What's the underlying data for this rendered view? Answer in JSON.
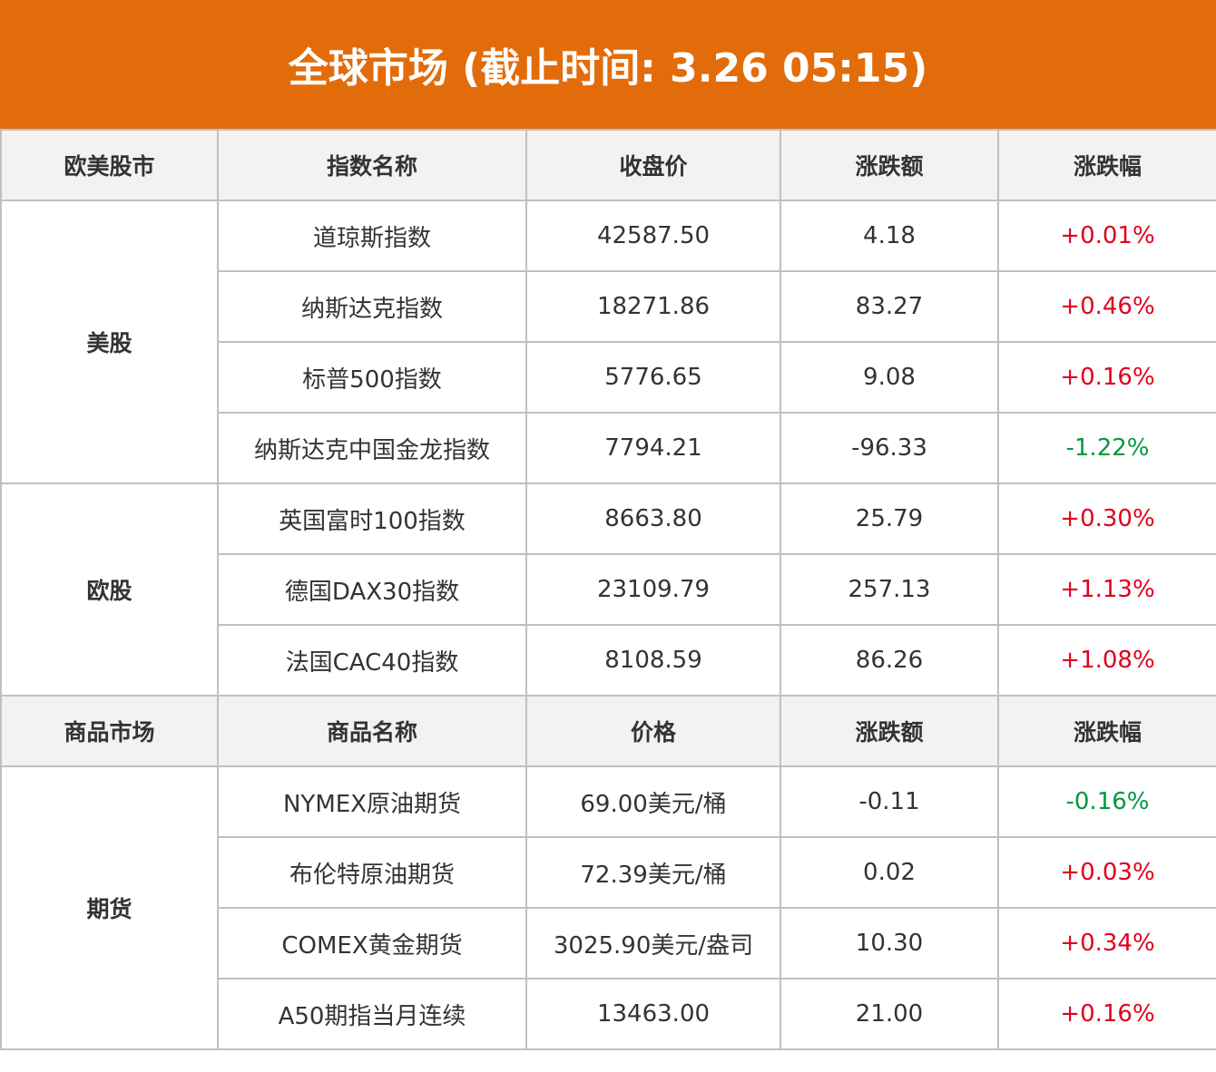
{
  "title": "全球市场 (截止时间: 3.26 05:15)",
  "colors": {
    "header_bg": "#e36c0a",
    "up": "#e0001b",
    "down": "#009a3e"
  },
  "sec1": {
    "headers": [
      "欧美股市",
      "指数名称",
      "收盘价",
      "涨跌额",
      "涨跌幅"
    ],
    "groups": [
      {
        "name": "美股",
        "rows": [
          [
            "道琼斯指数",
            "42587.50",
            "4.18",
            "+0.01%",
            "up"
          ],
          [
            "纳斯达克指数",
            "18271.86",
            "83.27",
            "+0.46%",
            "up"
          ],
          [
            "标普500指数",
            "5776.65",
            "9.08",
            "+0.16%",
            "up"
          ],
          [
            "纳斯达克中国金龙指数",
            "7794.21",
            "-96.33",
            "-1.22%",
            "down"
          ]
        ]
      },
      {
        "name": "欧股",
        "rows": [
          [
            "英国富时100指数",
            "8663.80",
            "25.79",
            "+0.30%",
            "up"
          ],
          [
            "德国DAX30指数",
            "23109.79",
            "257.13",
            "+1.13%",
            "up"
          ],
          [
            "法国CAC40指数",
            "8108.59",
            "86.26",
            "+1.08%",
            "up"
          ]
        ]
      }
    ]
  },
  "sec2": {
    "headers": [
      "商品市场",
      "商品名称",
      "价格",
      "涨跌额",
      "涨跌幅"
    ],
    "groups": [
      {
        "name": "期货",
        "rows": [
          [
            "NYMEX原油期货",
            "69.00美元/桶",
            "-0.11",
            "-0.16%",
            "down"
          ],
          [
            "布伦特原油期货",
            "72.39美元/桶",
            "0.02",
            "+0.03%",
            "up"
          ],
          [
            "COMEX黄金期货",
            "3025.90美元/盎司",
            "10.30",
            "+0.34%",
            "up"
          ],
          [
            "A50期指当月连续",
            "13463.00",
            "21.00",
            "+0.16%",
            "up"
          ]
        ]
      }
    ]
  }
}
